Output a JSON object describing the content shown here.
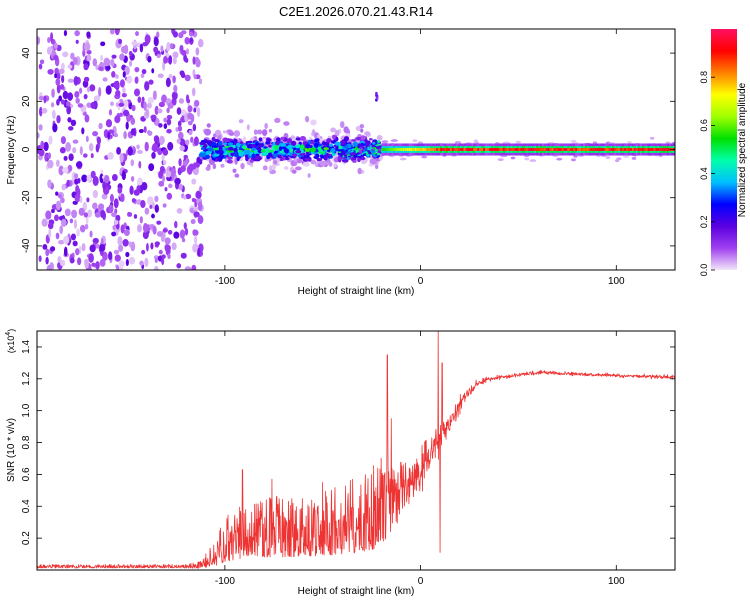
{
  "figure_title": "C2E1.2026.070.21.43.R14",
  "chart_data": [
    {
      "type": "heatmap",
      "title": "C2E1.2026.070.21.43.R14",
      "xlabel": "Height of straight line (km)",
      "ylabel": "Frequency (Hz)",
      "xlim": [
        -196,
        130
      ],
      "ylim": [
        -50,
        50
      ],
      "xticks": [
        -100,
        0,
        100
      ],
      "yticks": [
        -40,
        -20,
        0,
        20,
        40
      ],
      "xtick_labels": [
        "-100",
        "0",
        "100"
      ],
      "ytick_labels": [
        "-40",
        "-20",
        "0",
        "20",
        "40"
      ],
      "colorbar": {
        "label": "Normalized spectral amplitude",
        "range": [
          0,
          1
        ],
        "ticks": [
          0.0,
          0.2,
          0.4,
          0.6,
          0.8
        ],
        "tick_labels": [
          "0.0",
          "0.2",
          "0.4",
          "0.6",
          "0.8"
        ],
        "colormap": [
          "#f2e6f8",
          "#a040f0",
          "#5a00e0",
          "#0000ff",
          "#00c0ff",
          "#00ffaa",
          "#00e000",
          "#a0ff00",
          "#ffff00",
          "#ff8000",
          "#ff0000",
          "#ff1060"
        ]
      },
      "regions": [
        {
          "name": "noise",
          "x": [
            -196,
            -112
          ],
          "freq_spread": [
            -50,
            50
          ],
          "amplitude": 0.12
        },
        {
          "name": "onset",
          "x": [
            -112,
            -20
          ],
          "freq_center": 0,
          "freq_halfwidth": 6,
          "amplitude": 0.4
        },
        {
          "name": "bump",
          "x": [
            -40,
            -20
          ],
          "freq_center": 0,
          "freq_halfwidth": 6,
          "amplitude": 0.45
        },
        {
          "name": "outlier",
          "x": [
            -23,
            -22
          ],
          "freq": 22,
          "amplitude": 0.15
        },
        {
          "name": "tone",
          "x": [
            -20,
            130
          ],
          "freq_center": 0,
          "freq_halfwidth": 2.5,
          "amplitude": 0.95
        }
      ]
    },
    {
      "type": "line",
      "series_name": "SNR",
      "xlabel": "Height of straight line (km)",
      "ylabel": "SNR (10 * v/v)",
      "multiplier_label": "(x10",
      "multiplier_exponent": "4",
      "xlim": [
        -196,
        130
      ],
      "ylim": [
        0,
        15000
      ],
      "xticks": [
        -100,
        0,
        100
      ],
      "yticks": [
        2000,
        4000,
        6000,
        8000,
        10000,
        12000,
        14000
      ],
      "xtick_labels": [
        "-100",
        "0",
        "100"
      ],
      "ytick_labels": [
        "0.2",
        "0.4",
        "0.6",
        "0.8",
        "1.0",
        "1.2",
        "1.4"
      ],
      "color": "#ee3333",
      "envelope": {
        "x": [
          -196,
          -120,
          -112,
          -105,
          -100,
          -90,
          -80,
          -60,
          -40,
          -25,
          -17,
          -12,
          -5,
          0,
          5,
          10,
          15,
          20,
          25,
          30,
          40,
          60,
          80,
          100,
          130
        ],
        "mean": [
          200,
          200,
          250,
          800,
          1400,
          1900,
          2000,
          2100,
          2400,
          2900,
          4000,
          4800,
          5500,
          6200,
          7200,
          8300,
          9400,
          10400,
          11200,
          11800,
          12100,
          12400,
          12300,
          12200,
          12100
        ],
        "spread": [
          120,
          120,
          250,
          900,
          1500,
          1900,
          2000,
          2100,
          2400,
          2800,
          3300,
          2800,
          2300,
          2200,
          2000,
          1500,
          1100,
          700,
          450,
          300,
          200,
          180,
          180,
          180,
          180
        ]
      },
      "peaks": [
        {
          "x": -91,
          "y": 6300
        },
        {
          "x": -76,
          "y": 5700
        },
        {
          "x": -50,
          "y": 5500
        },
        {
          "x": -17,
          "y": 13500
        },
        {
          "x": -15,
          "y": 9500
        },
        {
          "x": 9,
          "y": 15000
        },
        {
          "x": 10,
          "y": 1100
        },
        {
          "x": 11,
          "y": 13000
        }
      ]
    }
  ]
}
